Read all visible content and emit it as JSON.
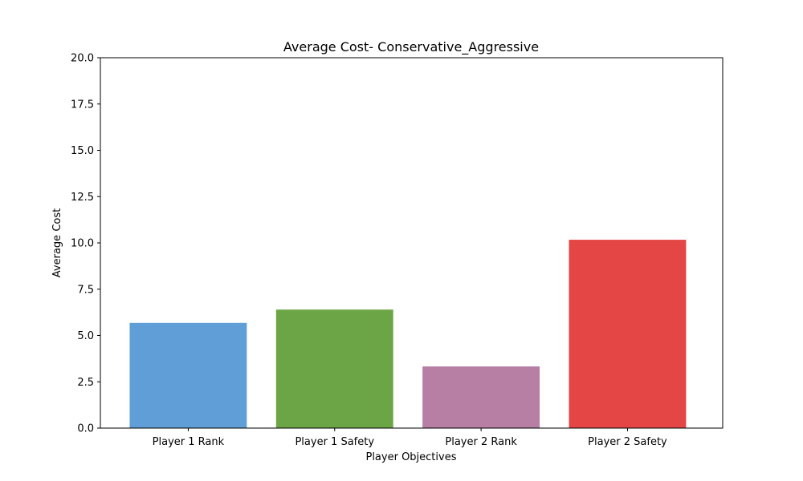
{
  "chart_data": {
    "type": "bar",
    "title": "Average Cost- Conservative_Aggressive",
    "xlabel": "Player Objectives",
    "ylabel": "Average Cost",
    "categories": [
      "Player 1 Rank",
      "Player 1 Safety",
      "Player 2 Rank",
      "Player 2 Safety"
    ],
    "values": [
      5.68,
      6.4,
      3.33,
      10.17
    ],
    "colors": [
      "#5f9ed6",
      "#6ca546",
      "#b67fa3",
      "#e44545"
    ],
    "ylim": [
      0,
      20
    ],
    "yticks": [
      "0.0",
      "2.5",
      "5.0",
      "7.5",
      "10.0",
      "12.5",
      "15.0",
      "17.5",
      "20.0"
    ],
    "grid": false,
    "legend": "none"
  }
}
